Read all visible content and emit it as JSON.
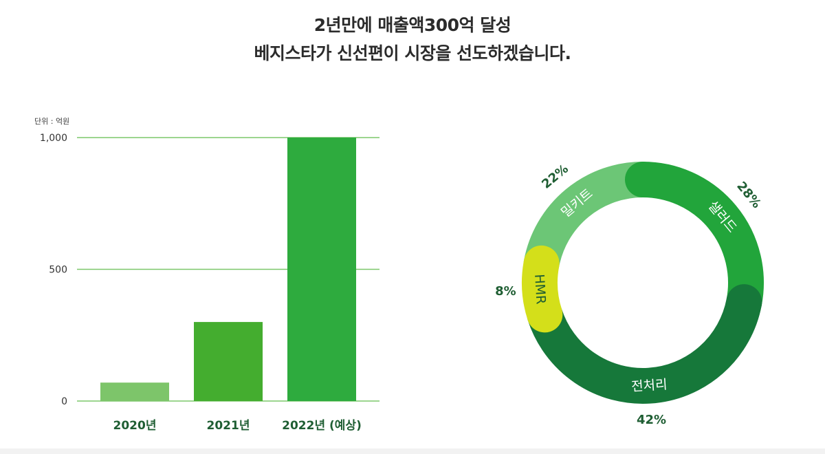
{
  "header": {
    "line1": "2년만에 매출액300억 달성",
    "line2": "베지스타가 신선편이 시장을 선도하겠습니다."
  },
  "chart_data": [
    {
      "type": "bar",
      "unit_label": "단위 : 억원",
      "categories": [
        "2020년",
        "2021년",
        "2022년 (예상)"
      ],
      "values": [
        70,
        300,
        1000
      ],
      "ylim": [
        0,
        1000
      ],
      "yticks": [
        0,
        500,
        1000
      ],
      "ytick_labels": [
        "0",
        "500",
        "1,000"
      ],
      "grid": true,
      "colors": [
        "#7dc56a",
        "#44ad2f",
        "#2eab3e"
      ]
    },
    {
      "type": "pie",
      "style": "donut",
      "slices": [
        {
          "label": "샐러드",
          "value": 28,
          "value_label": "28%",
          "color": "#22a53b"
        },
        {
          "label": "전처리",
          "value": 42,
          "value_label": "42%",
          "color": "#16783a"
        },
        {
          "label": "HMR",
          "value": 8,
          "value_label": "8%",
          "color": "#d4df1a"
        },
        {
          "label": "밀키트",
          "value": 22,
          "value_label": "22%",
          "color": "#6cc676"
        }
      ],
      "label_color": "#1f5e33"
    }
  ]
}
